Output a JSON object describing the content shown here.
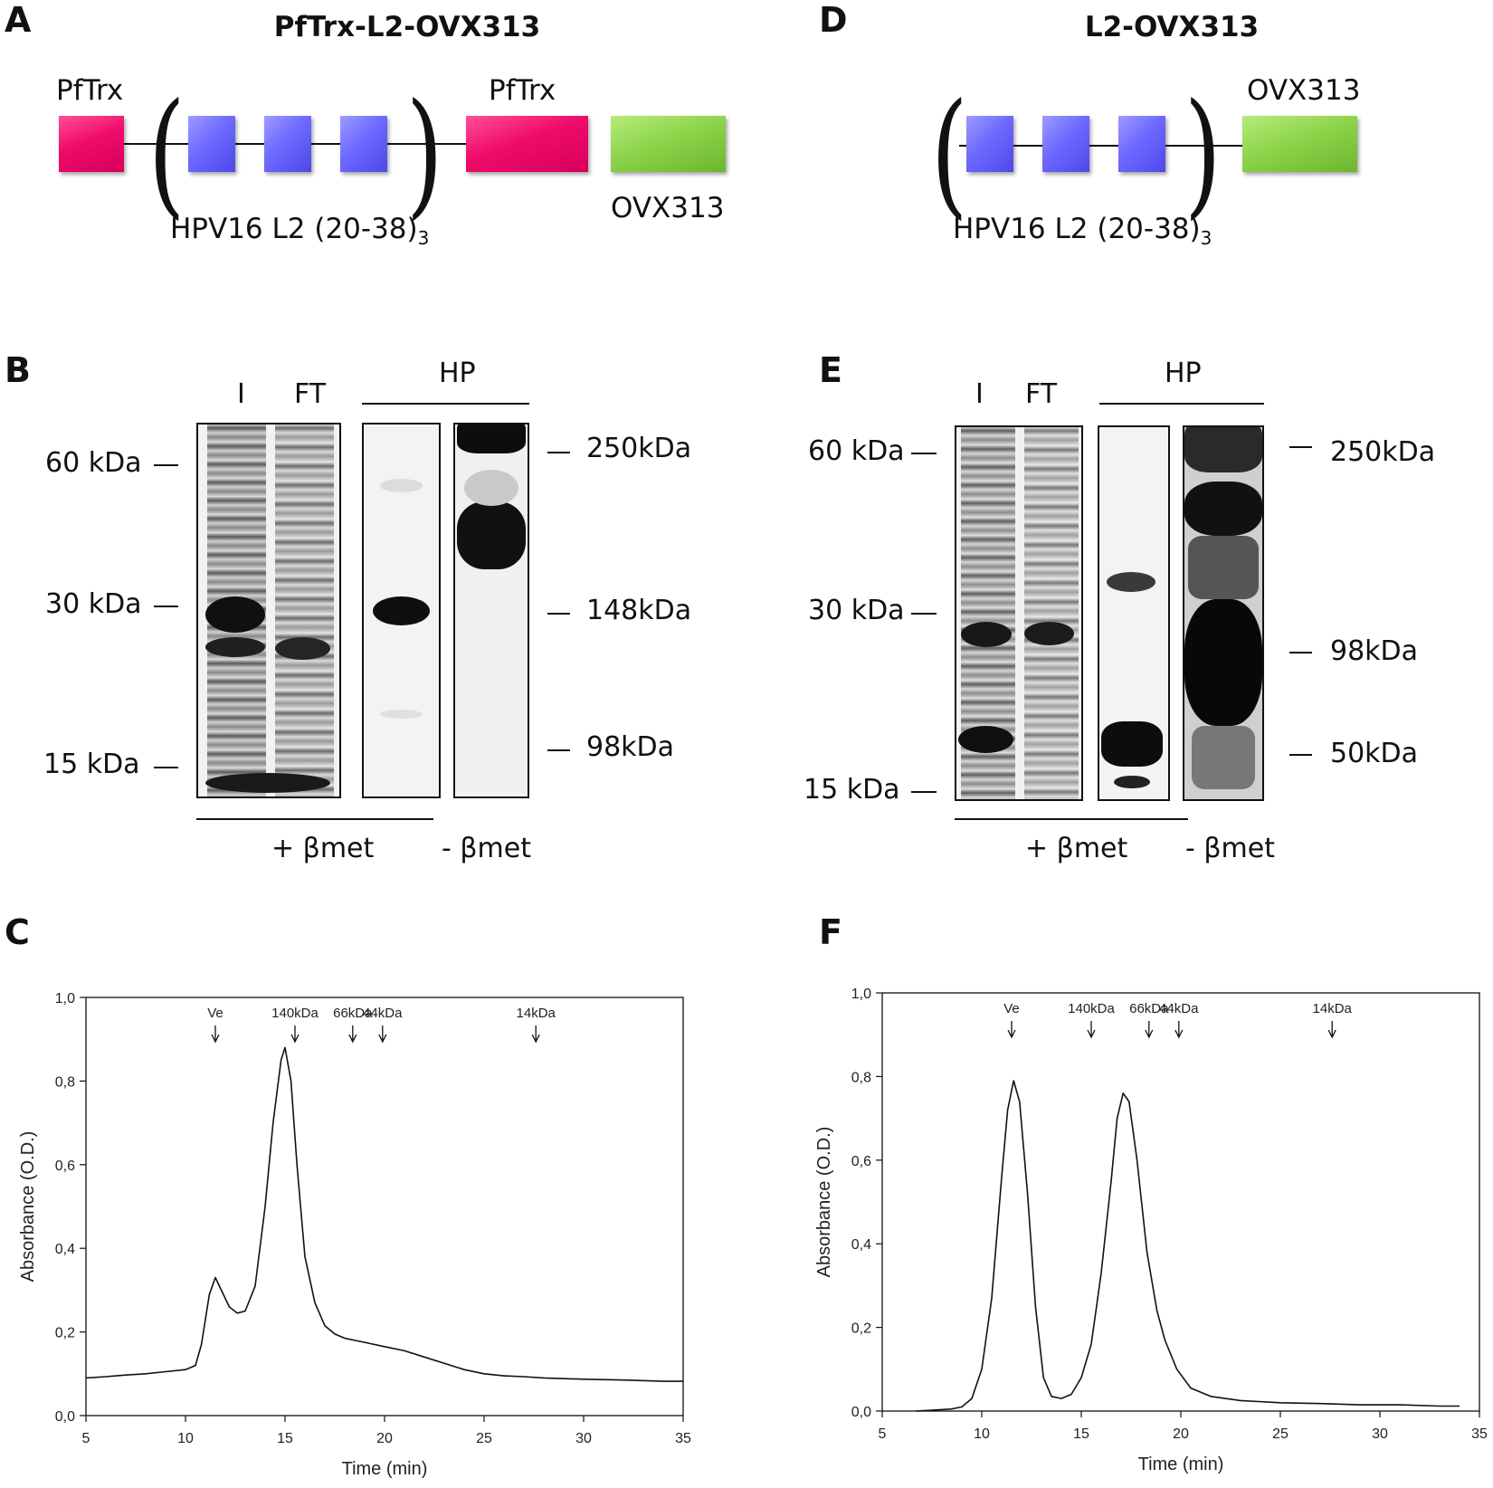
{
  "panels": {
    "A": {
      "letter": "A",
      "title": "PfTrx-L2-OVX313",
      "label_pftrx_left": "PfTrx",
      "label_pftrx_right": "PfTrx",
      "label_hpv": "HPV16 L2 (20-38)",
      "label_hpv_sub": "3",
      "label_ovx": "OVX313"
    },
    "D": {
      "letter": "D",
      "title": "L2-OVX313",
      "label_hpv": "HPV16 L2 (20-38)",
      "label_hpv_sub": "3",
      "label_ovx": "OVX313"
    },
    "B": {
      "letter": "B",
      "lane_labels": [
        "I",
        "FT"
      ],
      "hp_label": "HP",
      "left_markers": [
        "60 kDa",
        "30 kDa",
        "15 kDa"
      ],
      "right_markers": [
        "250kDa",
        "148kDa",
        "98kDa"
      ],
      "plus_bmet": "+ βmet",
      "minus_bmet": "- βmet"
    },
    "E": {
      "letter": "E",
      "lane_labels": [
        "I",
        "FT"
      ],
      "hp_label": "HP",
      "left_markers": [
        "60 kDa",
        "30 kDa",
        "15 kDa"
      ],
      "right_markers": [
        "250kDa",
        "98kDa",
        "50kDa"
      ],
      "plus_bmet": "+ βmet",
      "minus_bmet": "- βmet"
    },
    "C": {
      "letter": "C"
    },
    "F": {
      "letter": "F"
    }
  },
  "chart_data": [
    {
      "type": "line",
      "panel": "C",
      "xlabel": "Time (min)",
      "ylabel": "Absorbance (O.D.)",
      "xlim": [
        5,
        35
      ],
      "ylim": [
        0,
        1.0
      ],
      "xticks": [
        "5",
        "10",
        "15",
        "20",
        "25",
        "30",
        "35"
      ],
      "yticks": [
        "0,0",
        "0,2",
        "0,4",
        "0,6",
        "0,8",
        "1,0"
      ],
      "markers": [
        {
          "label": "Ve",
          "x": 11.5
        },
        {
          "label": "140kDa",
          "x": 15.5
        },
        {
          "label": "66kDa",
          "x": 18.4
        },
        {
          "label": "44kDa",
          "x": 19.9
        },
        {
          "label": "14kDa",
          "x": 27.6
        }
      ],
      "x": [
        5,
        6,
        7,
        8,
        9,
        10,
        10.5,
        10.8,
        11.2,
        11.5,
        11.8,
        12.2,
        12.6,
        13.0,
        13.5,
        14.0,
        14.4,
        14.8,
        15.0,
        15.3,
        15.6,
        16.0,
        16.5,
        17.0,
        17.5,
        18.0,
        19.0,
        20.0,
        21.0,
        22.0,
        23.0,
        24.0,
        25.0,
        26.0,
        27.0,
        28.0,
        30.0,
        32.0,
        34.0,
        35.0
      ],
      "y": [
        0.09,
        0.093,
        0.097,
        0.1,
        0.105,
        0.11,
        0.12,
        0.17,
        0.29,
        0.33,
        0.3,
        0.26,
        0.245,
        0.25,
        0.31,
        0.5,
        0.7,
        0.85,
        0.88,
        0.8,
        0.6,
        0.38,
        0.27,
        0.215,
        0.195,
        0.185,
        0.175,
        0.165,
        0.155,
        0.14,
        0.125,
        0.11,
        0.1,
        0.095,
        0.093,
        0.09,
        0.087,
        0.085,
        0.082,
        0.082
      ]
    },
    {
      "type": "line",
      "panel": "F",
      "xlabel": "Time (min)",
      "ylabel": "Absorbance (O.D.)",
      "xlim": [
        5,
        35
      ],
      "ylim": [
        0,
        1.0
      ],
      "xticks": [
        "5",
        "10",
        "15",
        "20",
        "25",
        "30",
        "35"
      ],
      "yticks": [
        "0,0",
        "0,2",
        "0,4",
        "0,6",
        "0,8",
        "1,0"
      ],
      "markers": [
        {
          "label": "Ve",
          "x": 11.5
        },
        {
          "label": "140kDa",
          "x": 15.5
        },
        {
          "label": "66kDa",
          "x": 18.4
        },
        {
          "label": "44kDa",
          "x": 19.9
        },
        {
          "label": "14kDa",
          "x": 27.6
        }
      ],
      "x": [
        6.7,
        7.5,
        8.5,
        9.0,
        9.5,
        10.0,
        10.5,
        11.0,
        11.3,
        11.6,
        11.9,
        12.3,
        12.7,
        13.1,
        13.5,
        14.0,
        14.5,
        15.0,
        15.5,
        16.0,
        16.5,
        16.8,
        17.1,
        17.4,
        17.8,
        18.3,
        18.8,
        19.2,
        19.8,
        20.5,
        21.5,
        23.0,
        25.0,
        27.0,
        29.0,
        31.0,
        33.0,
        34.0
      ],
      "y": [
        0.0,
        0.002,
        0.005,
        0.01,
        0.03,
        0.1,
        0.27,
        0.56,
        0.72,
        0.79,
        0.74,
        0.52,
        0.25,
        0.08,
        0.035,
        0.03,
        0.04,
        0.08,
        0.16,
        0.33,
        0.55,
        0.7,
        0.76,
        0.74,
        0.6,
        0.38,
        0.24,
        0.17,
        0.1,
        0.055,
        0.035,
        0.025,
        0.02,
        0.018,
        0.015,
        0.015,
        0.012,
        0.012
      ]
    }
  ]
}
